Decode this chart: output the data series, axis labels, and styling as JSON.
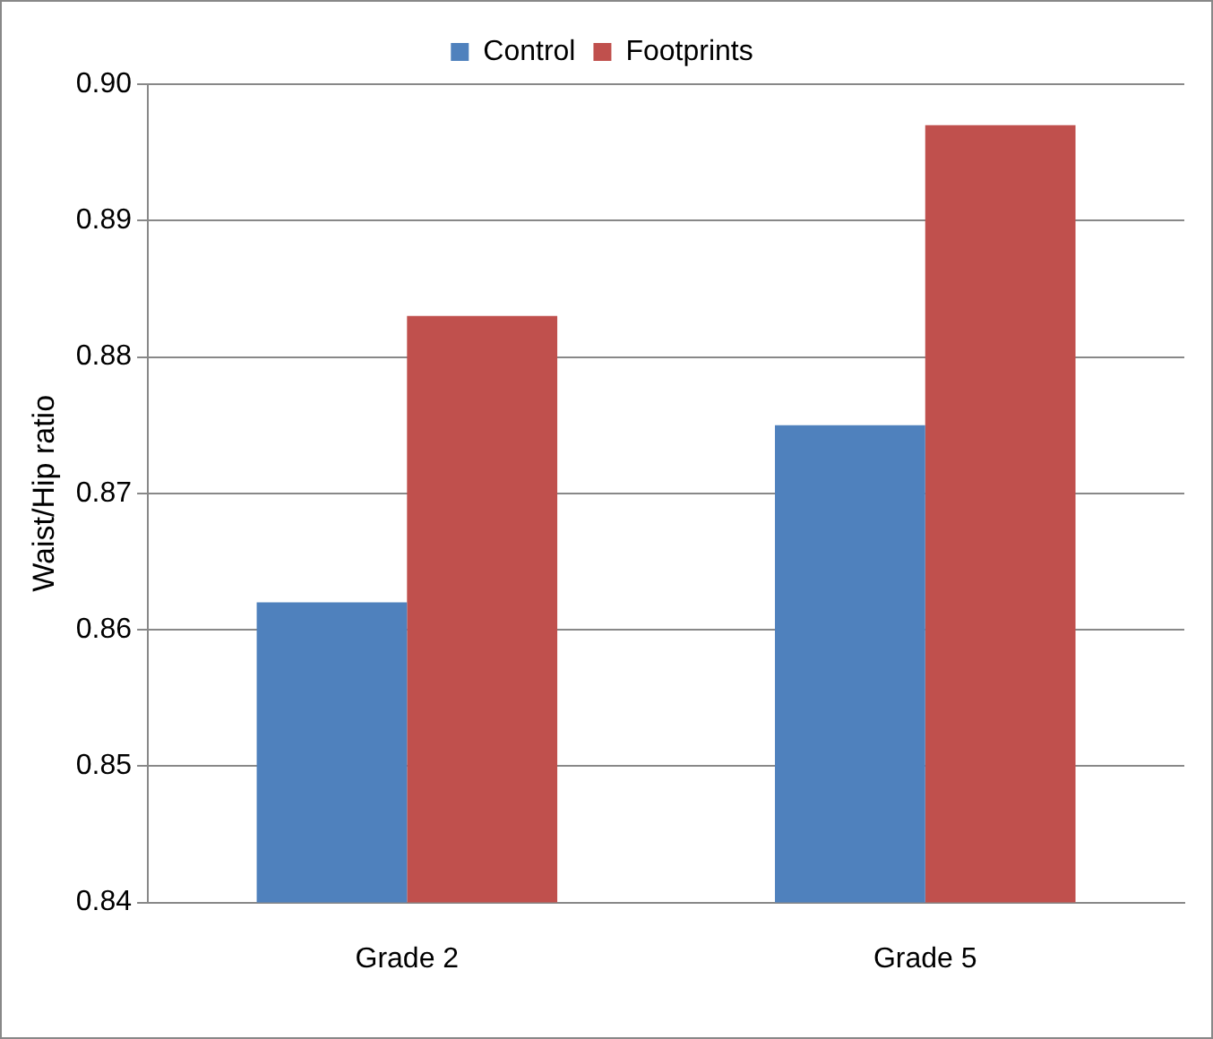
{
  "chart_data": {
    "type": "bar",
    "ylabel": "Waist/Hip ratio",
    "categories": [
      "Grade 2",
      "Grade 5"
    ],
    "series": [
      {
        "name": "Control",
        "color": "#4f81bd",
        "values": [
          0.862,
          0.875
        ]
      },
      {
        "name": "Footprints",
        "color": "#c0504d",
        "values": [
          0.883,
          0.897
        ]
      }
    ],
    "ylim": [
      0.84,
      0.9
    ],
    "yticks": [
      0.84,
      0.85,
      0.86,
      0.87,
      0.88,
      0.89,
      {
        "value": 0.9,
        "label": "0.90"
      }
    ],
    "grid": "y",
    "legend": "top"
  }
}
